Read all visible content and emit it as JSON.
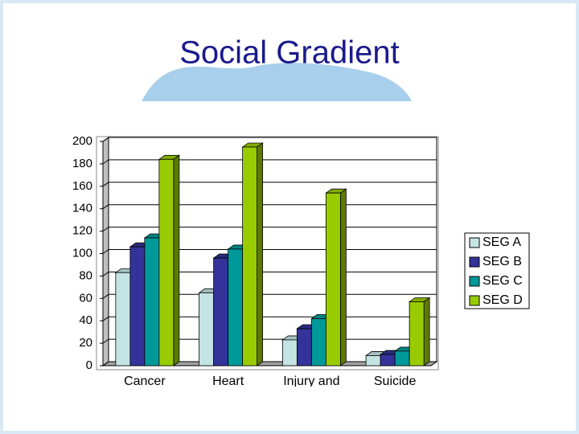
{
  "chart_data": {
    "type": "bar",
    "title": "Social Gradient",
    "categories": [
      "Cancer",
      "Heart",
      "Injury and",
      "Suicide"
    ],
    "series": [
      {
        "name": "SEG A",
        "color": "#c4e4e4",
        "values": [
          83,
          65,
          23,
          9
        ]
      },
      {
        "name": "SEG B",
        "color": "#333399",
        "values": [
          106,
          96,
          33,
          10
        ]
      },
      {
        "name": "SEG C",
        "color": "#009999",
        "values": [
          114,
          104,
          42,
          13
        ]
      },
      {
        "name": "SEG D",
        "color": "#99cc00",
        "values": [
          184,
          195,
          154,
          57
        ]
      }
    ],
    "ylim": [
      0,
      200
    ],
    "yticks": [
      0,
      20,
      40,
      60,
      80,
      100,
      120,
      140,
      160,
      180,
      200
    ],
    "grid": true,
    "legend": "right"
  }
}
